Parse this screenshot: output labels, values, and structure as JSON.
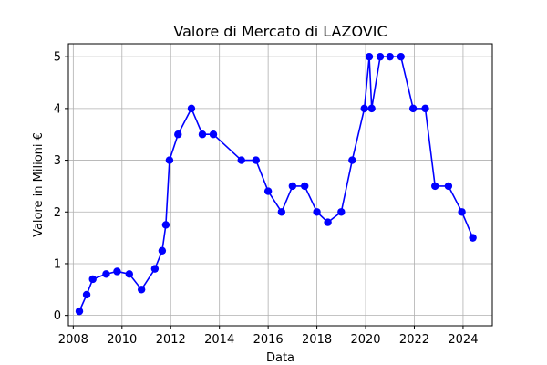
{
  "chart_data": {
    "type": "line",
    "title": "Valore di Mercato di LAZOVIC",
    "xlabel": "Data",
    "ylabel": "Valore in Milioni €",
    "xlim": [
      2007.8,
      2025.2
    ],
    "ylim": [
      -0.2,
      5.25
    ],
    "x_ticks": [
      2008,
      2010,
      2012,
      2014,
      2016,
      2018,
      2020,
      2022,
      2024
    ],
    "y_ticks": [
      0,
      1,
      2,
      3,
      4,
      5
    ],
    "grid": true,
    "line_color": "#0000ff",
    "series": [
      {
        "x": [
          2008.25,
          2008.55,
          2008.8,
          2009.35,
          2009.8,
          2010.3,
          2010.8,
          2011.35,
          2011.65,
          2011.8,
          2011.95,
          2012.3,
          2012.85,
          2013.3,
          2013.75,
          2014.9,
          2015.5,
          2016.0,
          2016.55,
          2017.0,
          2017.5,
          2018.0,
          2018.45,
          2019.0,
          2019.45,
          2019.95,
          2020.15,
          2020.25,
          2020.6,
          2021.0,
          2021.45,
          2021.95,
          2022.45,
          2022.85,
          2023.4,
          2023.95,
          2024.4
        ],
        "y": [
          0.08,
          0.4,
          0.7,
          0.8,
          0.85,
          0.8,
          0.5,
          0.9,
          1.25,
          1.75,
          3.0,
          3.5,
          4.0,
          3.5,
          3.5,
          3.0,
          3.0,
          2.4,
          2.0,
          2.5,
          2.5,
          2.0,
          1.8,
          2.0,
          3.0,
          4.0,
          5.0,
          4.0,
          5.0,
          5.0,
          5.0,
          4.0,
          4.0,
          2.5,
          2.5,
          2.0,
          1.5
        ]
      }
    ]
  }
}
